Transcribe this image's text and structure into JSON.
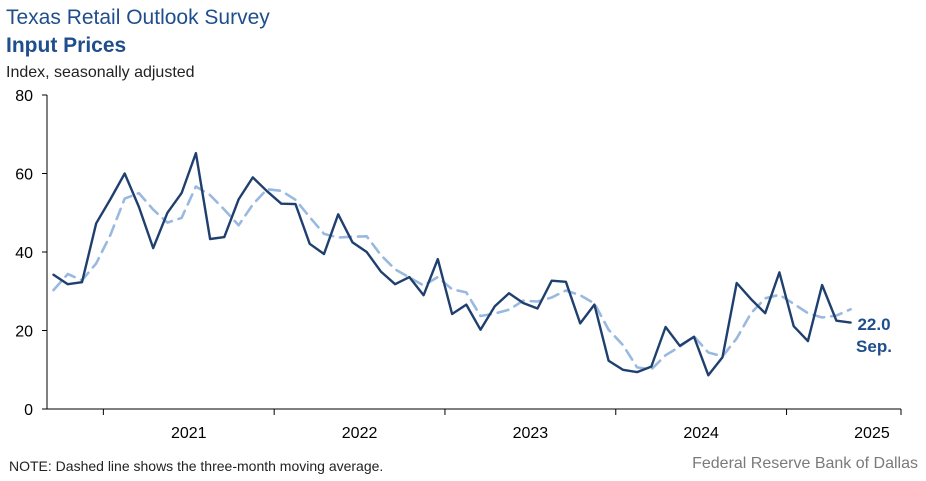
{
  "header": {
    "survey_title": "Texas Retail Outlook Survey",
    "chart_title": "Input Prices",
    "subtitle": "Index, seasonally adjusted"
  },
  "footer": {
    "note": "NOTE: Dashed line shows the three-month moving average.",
    "source": "Federal Reserve Bank of Dallas"
  },
  "callout": {
    "value": "22.0",
    "month": "Sep."
  },
  "colors": {
    "index_line": "#1f3f6e",
    "moving_average": "#9ab9e0",
    "callout_text": "#1f4e8c"
  },
  "chart_data": {
    "type": "line",
    "ylim": [
      0,
      80
    ],
    "yticks": [
      0,
      20,
      40,
      60,
      80
    ],
    "x_start": "2020-09",
    "xlim_years": [
      2020.67,
      2025.67
    ],
    "xtick_labels": [
      "2021",
      "2022",
      "2023",
      "2024",
      "2025"
    ],
    "grid": false,
    "series": [
      {
        "style": "solid",
        "values": [
          34.2,
          31.8,
          32.3,
          47.3,
          53.5,
          60.0,
          51.5,
          41.0,
          50.0,
          55.0,
          65.2,
          43.3,
          43.8,
          53.4,
          59.0,
          55.5,
          52.3,
          52.2,
          42.1,
          39.5,
          49.6,
          42.5,
          40.0,
          35.0,
          31.8,
          33.6,
          29.0,
          38.2,
          24.2,
          26.6,
          20.2,
          26.2,
          29.5,
          27.0,
          25.6,
          32.7,
          32.4,
          21.8,
          26.6,
          12.3,
          10.0,
          9.4,
          10.8,
          20.9,
          16.1,
          18.4,
          8.6,
          13.2,
          32.1,
          28.0,
          24.4,
          34.8,
          21.1,
          17.3,
          31.6,
          22.5,
          22.0
        ]
      },
      {
        "style": "dashed",
        "values": [
          30.3,
          34.4,
          32.8,
          37.1,
          44.4,
          53.6,
          55.0,
          50.8,
          47.5,
          48.7,
          56.7,
          54.5,
          50.8,
          46.8,
          52.1,
          56.0,
          55.6,
          53.3,
          48.9,
          44.6,
          43.7,
          43.9,
          44.0,
          39.2,
          35.6,
          33.5,
          31.5,
          33.6,
          30.5,
          29.7,
          23.7,
          24.3,
          25.3,
          27.6,
          27.4,
          28.4,
          30.2,
          29.0,
          26.9,
          20.2,
          16.3,
          10.6,
          10.1,
          13.7,
          15.9,
          18.5,
          14.4,
          13.4,
          18.0,
          24.4,
          28.2,
          29.1,
          26.8,
          24.4,
          23.3,
          23.8,
          25.4
        ]
      }
    ]
  }
}
